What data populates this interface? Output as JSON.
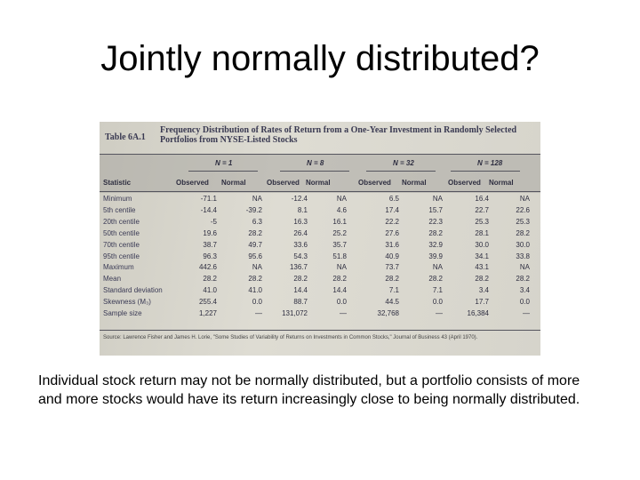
{
  "slide": {
    "title": "Jointly normally distributed?",
    "caption": "Individual stock return may not be normally distributed, but a portfolio consists of more and more stocks would have its return increasingly close to being normally distributed."
  },
  "table": {
    "id": "Table 6A.1",
    "title": "Frequency Distribution of Rates of Return from a One-Year Investment in Randomly Selected Portfolios from NYSE-Listed Stocks",
    "stat_header": "Statistic",
    "groups": [
      "N = 1",
      "N = 8",
      "N = 32",
      "N = 128"
    ],
    "col_headers": [
      "Observed",
      "Normal",
      "Observed",
      "Normal",
      "Observed",
      "Normal",
      "Observed",
      "Normal"
    ],
    "rows": [
      {
        "label": "Minimum",
        "values": [
          "-71.1",
          "NA",
          "-12.4",
          "NA",
          "6.5",
          "NA",
          "16.4",
          "NA"
        ]
      },
      {
        "label": "5th centile",
        "values": [
          "-14.4",
          "-39.2",
          "8.1",
          "4.6",
          "17.4",
          "15.7",
          "22.7",
          "22.6"
        ]
      },
      {
        "label": "20th centile",
        "values": [
          "-5",
          "6.3",
          "16.3",
          "16.1",
          "22.2",
          "22.3",
          "25.3",
          "25.3"
        ]
      },
      {
        "label": "50th centile",
        "values": [
          "19.6",
          "28.2",
          "26.4",
          "25.2",
          "27.6",
          "28.2",
          "28.1",
          "28.2"
        ]
      },
      {
        "label": "70th centile",
        "values": [
          "38.7",
          "49.7",
          "33.6",
          "35.7",
          "31.6",
          "32.9",
          "30.0",
          "30.0"
        ]
      },
      {
        "label": "95th centile",
        "values": [
          "96.3",
          "95.6",
          "54.3",
          "51.8",
          "40.9",
          "39.9",
          "34.1",
          "33.8"
        ]
      },
      {
        "label": "Maximum",
        "values": [
          "442.6",
          "NA",
          "136.7",
          "NA",
          "73.7",
          "NA",
          "43.1",
          "NA"
        ]
      },
      {
        "label": "Mean",
        "values": [
          "28.2",
          "28.2",
          "28.2",
          "28.2",
          "28.2",
          "28.2",
          "28.2",
          "28.2"
        ]
      },
      {
        "label": "Standard deviation",
        "values": [
          "41.0",
          "41.0",
          "14.4",
          "14.4",
          "7.1",
          "7.1",
          "3.4",
          "3.4"
        ]
      },
      {
        "label": "Skewness (M₃)",
        "values": [
          "255.4",
          "0.0",
          "88.7",
          "0.0",
          "44.5",
          "0.0",
          "17.7",
          "0.0"
        ]
      },
      {
        "label": "Sample size",
        "values": [
          "1,227",
          "—",
          "131,072",
          "—",
          "32,768",
          "—",
          "16,384",
          "—"
        ]
      }
    ],
    "source": "Source: Lawrence Fisher and James H. Lorie, \"Some Studies of Variability of Returns on Investments in Common Stocks,\" Journal of Business 43 (April 1970)."
  }
}
